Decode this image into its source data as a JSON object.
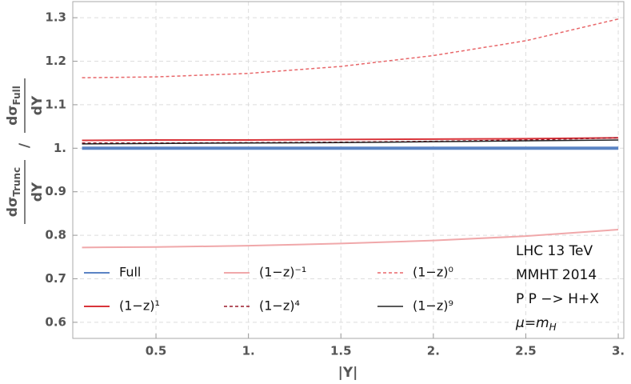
{
  "chart_data": {
    "type": "line",
    "xlabel": "|Y|",
    "ylabel": {
      "left_num": "dσ",
      "left_sub": "Trunc",
      "left_den": "dY",
      "sep": "/",
      "right_num": "dσ",
      "right_sub": "Full",
      "right_den": "dY"
    },
    "x": [
      0.1,
      0.5,
      1,
      1.5,
      2,
      2.5,
      3
    ],
    "series": [
      {
        "name": "Full",
        "color": "#5b84c4",
        "width": 4,
        "dash": false,
        "values": [
          1,
          1,
          1,
          1,
          1,
          1,
          1
        ]
      },
      {
        "name": "(1−z)⁻¹",
        "color": "#f0a8aa",
        "width": 2,
        "dash": false,
        "values": [
          0.772,
          0.773,
          0.776,
          0.781,
          0.788,
          0.798,
          0.813
        ]
      },
      {
        "name": "(1−z)⁰",
        "color": "#e8676a",
        "width": 1.5,
        "dash": true,
        "values": [
          1.162,
          1.164,
          1.172,
          1.188,
          1.213,
          1.247,
          1.297
        ]
      },
      {
        "name": "(1−z)¹",
        "color": "#d9343a",
        "width": 2,
        "dash": false,
        "values": [
          1.018,
          1.019,
          1.019,
          1.02,
          1.021,
          1.022,
          1.024
        ]
      },
      {
        "name": "(1−z)⁴",
        "color": "#9c1a2a",
        "width": 1.5,
        "dash": true,
        "values": [
          1.012,
          1.012,
          1.013,
          1.014,
          1.016,
          1.019,
          1.024
        ]
      },
      {
        "name": "(1−z)⁹",
        "color": "#222222",
        "width": 1.5,
        "dash": false,
        "values": [
          1.01,
          1.011,
          1.012,
          1.013,
          1.015,
          1.017,
          1.019
        ]
      }
    ],
    "xlim": [
      0.05,
      3.03
    ],
    "ylim": [
      0.563,
      1.337
    ],
    "xticks": [
      0.5,
      {
        "value": 1,
        "label": "1."
      },
      1.5,
      {
        "value": 2,
        "label": "2."
      },
      2.5,
      {
        "value": 3,
        "label": "3."
      }
    ],
    "yticks": [
      0.6,
      0.7,
      0.8,
      0.9,
      {
        "value": 1,
        "label": "1."
      },
      1.1,
      1.2,
      1.3
    ],
    "grid": true,
    "annotations": [
      "LHC 13 TeV",
      "MMHT 2014",
      "P P −> H+X",
      {
        "text": "μ=m",
        "sub": "H"
      }
    ]
  }
}
